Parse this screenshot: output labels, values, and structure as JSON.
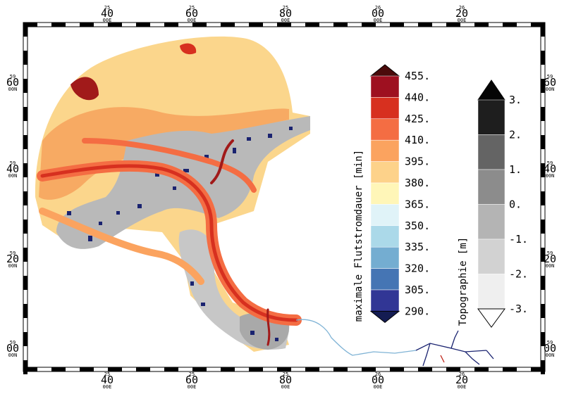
{
  "map": {
    "top_axis_labels": [
      {
        "main": "40",
        "deg": "25",
        "sub": "00E"
      },
      {
        "main": "60",
        "deg": "25",
        "sub": "00E"
      },
      {
        "main": "80",
        "deg": "25",
        "sub": "00E"
      },
      {
        "main": "00",
        "deg": "26",
        "sub": "00E"
      },
      {
        "main": "20",
        "deg": "26",
        "sub": "00E"
      }
    ],
    "bottom_axis_labels": [
      {
        "main": "40",
        "deg": "25",
        "sub": "00E"
      },
      {
        "main": "60",
        "deg": "25",
        "sub": "00E"
      },
      {
        "main": "80",
        "deg": "25",
        "sub": "00E"
      },
      {
        "main": "00",
        "deg": "26",
        "sub": "00E"
      },
      {
        "main": "20",
        "deg": "26",
        "sub": "00E"
      }
    ],
    "left_axis_labels": [
      {
        "main": "60",
        "deg": "59",
        "sub": "00N"
      },
      {
        "main": "40",
        "deg": "59",
        "sub": "00N"
      },
      {
        "main": "20",
        "deg": "59",
        "sub": "00N"
      },
      {
        "main": "00",
        "deg": "59",
        "sub": "00N"
      }
    ],
    "right_axis_labels": [
      {
        "main": "60",
        "deg": "59",
        "sub": "00N"
      },
      {
        "main": "40",
        "deg": "59",
        "sub": "00N"
      },
      {
        "main": "20",
        "deg": "59",
        "sub": "00N"
      },
      {
        "main": "00",
        "deg": "59",
        "sub": "00N"
      }
    ]
  },
  "colorbar_flow": {
    "title": "maximale Flutstromdauer [min]",
    "labels": [
      "455.",
      "440.",
      "425.",
      "410.",
      "395.",
      "380.",
      "365.",
      "350.",
      "335.",
      "320.",
      "305.",
      "290."
    ],
    "colors": [
      "#4b0b0b",
      "#9e1020",
      "#d7301f",
      "#f46d43",
      "#fba35f",
      "#fdd28a",
      "#fff6b8",
      "#e0f3f8",
      "#abd9e9",
      "#74add1",
      "#4575b4",
      "#313695",
      "#141c52"
    ]
  },
  "colorbar_topo": {
    "title": "Topographie [m]",
    "labels": [
      "3.",
      "2.",
      "1.",
      "0.",
      "-1.",
      "-2.",
      "-3."
    ],
    "colors": [
      "#050505",
      "#1e1e1e",
      "#646464",
      "#8c8c8c",
      "#b4b4b4",
      "#d2d2d2",
      "#efefef",
      "#ffffff"
    ]
  },
  "map_colors": {
    "land_gray": "#b9b9b9",
    "shallow_gray": "#d6d6d6",
    "tidal_flat_blue": "#1a2370",
    "sea_light": "#fbd68c",
    "sea_orange": "#f6a25c",
    "channel_red": "#c0271c",
    "river": "#2b4d9c"
  }
}
